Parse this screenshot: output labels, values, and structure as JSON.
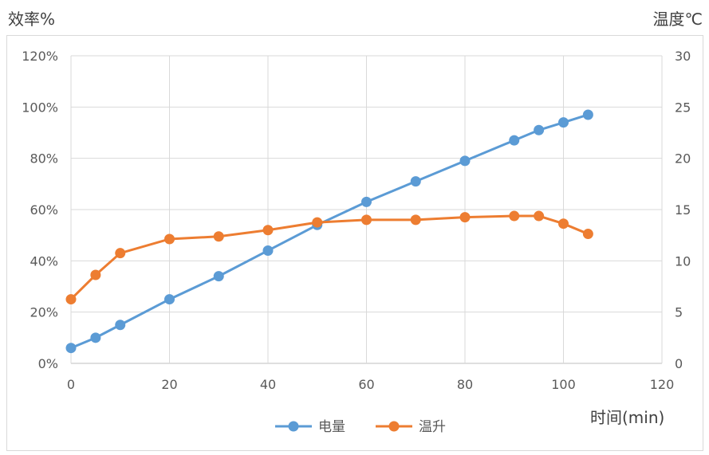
{
  "chart_data": {
    "type": "line",
    "xlabel": "时间(min)",
    "ylabel_left": "效率%",
    "ylabel_right": "温度℃",
    "x_ticks": [
      "0",
      "20",
      "40",
      "60",
      "80",
      "100",
      "120"
    ],
    "y_left_ticks": [
      "0%",
      "20%",
      "40%",
      "60%",
      "80%",
      "100%",
      "120%"
    ],
    "y_right_ticks": [
      "0",
      "5",
      "10",
      "15",
      "20",
      "25",
      "30"
    ],
    "xlim": [
      0,
      120
    ],
    "ylim_left": [
      0,
      120
    ],
    "ylim_right": [
      0,
      30
    ],
    "grid": true,
    "legend_position": "bottom",
    "series": [
      {
        "name": "电量",
        "axis": "left",
        "color": "#5b9bd5",
        "x": [
          0,
          5,
          10,
          20,
          30,
          40,
          50,
          60,
          70,
          80,
          90,
          95,
          100,
          105
        ],
        "values": [
          6,
          10,
          15,
          25,
          34,
          44,
          54,
          63,
          71,
          79,
          87,
          91,
          94,
          97
        ]
      },
      {
        "name": "温升",
        "axis": "left",
        "color": "#ed7d31",
        "x": [
          0,
          5,
          10,
          20,
          30,
          40,
          50,
          60,
          70,
          80,
          90,
          95,
          100,
          105
        ],
        "values": [
          25,
          34.5,
          43,
          48.5,
          49.5,
          52,
          55,
          56,
          56,
          57,
          57.5,
          57.5,
          54.5,
          50.5
        ]
      }
    ]
  }
}
